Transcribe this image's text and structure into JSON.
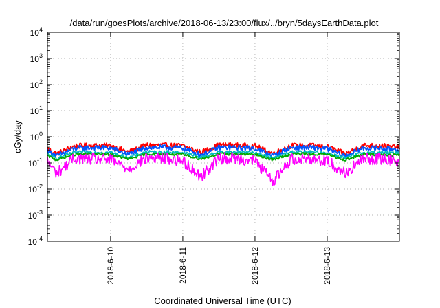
{
  "chart_data": {
    "type": "line",
    "title": "/data/run/goesPlots/archive/2018-06-13/23:00/flux/../bryn/5daysEarthData.plot",
    "xlabel": "Coordinated Universal Time (UTC)",
    "ylabel": "cGy/day",
    "x_start": "2018-06-09T03:00",
    "x_end": "2018-06-14T00:00",
    "x_ticks": [
      {
        "label": "2018-6-10",
        "value": "2018-06-10T00:00"
      },
      {
        "label": "2018-6-11",
        "value": "2018-06-11T00:00"
      },
      {
        "label": "2018-6-12",
        "value": "2018-06-12T00:00"
      },
      {
        "label": "2018-6-13",
        "value": "2018-06-13T00:00"
      }
    ],
    "y_scale": "log",
    "ylim": [
      0.0001,
      10000
    ],
    "y_ticks": [
      {
        "base": "10",
        "exp": "4",
        "value": 10000
      },
      {
        "base": "10",
        "exp": "3",
        "value": 1000
      },
      {
        "base": "10",
        "exp": "2",
        "value": 100
      },
      {
        "base": "10",
        "exp": "1",
        "value": 10
      },
      {
        "base": "10",
        "exp": "0",
        "value": 1
      },
      {
        "base": "10",
        "exp": "-1",
        "value": 0.1
      },
      {
        "base": "10",
        "exp": "-2",
        "value": 0.01
      },
      {
        "base": "10",
        "exp": "-3",
        "value": 0.001
      },
      {
        "base": "10",
        "exp": "-4",
        "value": 0.0001
      }
    ],
    "grid": true,
    "legend": "none",
    "series": [
      {
        "color": "#ff0000",
        "x": [
          "2018-06-09T03:00",
          "2018-06-09T06:00",
          "2018-06-09T12:00",
          "2018-06-09T18:00",
          "2018-06-10T00:00",
          "2018-06-10T06:00",
          "2018-06-10T12:00",
          "2018-06-10T18:00",
          "2018-06-11T00:00",
          "2018-06-11T06:00",
          "2018-06-11T12:00",
          "2018-06-11T18:00",
          "2018-06-12T00:00",
          "2018-06-12T06:00",
          "2018-06-12T12:00",
          "2018-06-12T18:00",
          "2018-06-13T00:00",
          "2018-06-13T06:00",
          "2018-06-13T12:00",
          "2018-06-13T18:00",
          "2018-06-14T00:00"
        ],
        "values": [
          0.36,
          0.22,
          0.44,
          0.47,
          0.45,
          0.26,
          0.48,
          0.47,
          0.45,
          0.25,
          0.48,
          0.47,
          0.44,
          0.23,
          0.46,
          0.46,
          0.42,
          0.22,
          0.46,
          0.45,
          0.4
        ]
      },
      {
        "color": "#0055ff",
        "x": [
          "2018-06-09T03:00",
          "2018-06-09T06:00",
          "2018-06-09T12:00",
          "2018-06-09T18:00",
          "2018-06-10T00:00",
          "2018-06-10T06:00",
          "2018-06-10T12:00",
          "2018-06-10T18:00",
          "2018-06-11T00:00",
          "2018-06-11T06:00",
          "2018-06-11T12:00",
          "2018-06-11T18:00",
          "2018-06-12T00:00",
          "2018-06-12T06:00",
          "2018-06-12T12:00",
          "2018-06-12T18:00",
          "2018-06-13T00:00",
          "2018-06-13T06:00",
          "2018-06-13T12:00",
          "2018-06-13T18:00",
          "2018-06-14T00:00"
        ],
        "values": [
          0.3,
          0.18,
          0.36,
          0.38,
          0.37,
          0.21,
          0.39,
          0.39,
          0.37,
          0.2,
          0.39,
          0.38,
          0.36,
          0.19,
          0.38,
          0.38,
          0.35,
          0.18,
          0.37,
          0.36,
          0.33
        ]
      },
      {
        "color": "#00bbbb",
        "x": [
          "2018-06-09T03:00",
          "2018-06-09T06:00",
          "2018-06-09T12:00",
          "2018-06-09T18:00",
          "2018-06-10T00:00",
          "2018-06-10T06:00",
          "2018-06-10T12:00",
          "2018-06-10T18:00",
          "2018-06-11T00:00",
          "2018-06-11T06:00",
          "2018-06-11T12:00",
          "2018-06-11T18:00",
          "2018-06-12T00:00",
          "2018-06-12T06:00",
          "2018-06-12T12:00",
          "2018-06-12T18:00",
          "2018-06-13T00:00",
          "2018-06-13T06:00",
          "2018-06-13T12:00",
          "2018-06-13T18:00",
          "2018-06-14T00:00"
        ],
        "values": [
          0.22,
          0.15,
          0.25,
          0.26,
          0.25,
          0.16,
          0.26,
          0.26,
          0.25,
          0.16,
          0.26,
          0.26,
          0.25,
          0.15,
          0.26,
          0.26,
          0.24,
          0.15,
          0.25,
          0.25,
          0.23
        ]
      },
      {
        "color": "#00aa00",
        "x": [
          "2018-06-09T03:00",
          "2018-06-09T06:00",
          "2018-06-09T12:00",
          "2018-06-09T18:00",
          "2018-06-10T00:00",
          "2018-06-10T06:00",
          "2018-06-10T12:00",
          "2018-06-10T18:00",
          "2018-06-11T00:00",
          "2018-06-11T06:00",
          "2018-06-11T12:00",
          "2018-06-11T18:00",
          "2018-06-12T00:00",
          "2018-06-12T06:00",
          "2018-06-12T12:00",
          "2018-06-12T18:00",
          "2018-06-13T00:00",
          "2018-06-13T06:00",
          "2018-06-13T12:00",
          "2018-06-13T18:00",
          "2018-06-14T00:00"
        ],
        "values": [
          0.19,
          0.13,
          0.21,
          0.22,
          0.21,
          0.14,
          0.22,
          0.22,
          0.21,
          0.14,
          0.22,
          0.22,
          0.21,
          0.13,
          0.22,
          0.22,
          0.21,
          0.13,
          0.21,
          0.21,
          0.2
        ]
      },
      {
        "color": "#ff00ff",
        "x": [
          "2018-06-09T03:00",
          "2018-06-09T06:00",
          "2018-06-09T12:00",
          "2018-06-09T18:00",
          "2018-06-10T00:00",
          "2018-06-10T06:00",
          "2018-06-10T12:00",
          "2018-06-10T18:00",
          "2018-06-11T00:00",
          "2018-06-11T06:00",
          "2018-06-11T12:00",
          "2018-06-11T18:00",
          "2018-06-12T00:00",
          "2018-06-12T06:00",
          "2018-06-12T12:00",
          "2018-06-12T18:00",
          "2018-06-13T00:00",
          "2018-06-13T06:00",
          "2018-06-13T12:00",
          "2018-06-13T18:00",
          "2018-06-14T00:00"
        ],
        "values": [
          0.12,
          0.04,
          0.15,
          0.14,
          0.13,
          0.06,
          0.15,
          0.15,
          0.12,
          0.03,
          0.15,
          0.15,
          0.12,
          0.02,
          0.14,
          0.15,
          0.12,
          0.04,
          0.14,
          0.14,
          0.12
        ]
      }
    ]
  }
}
